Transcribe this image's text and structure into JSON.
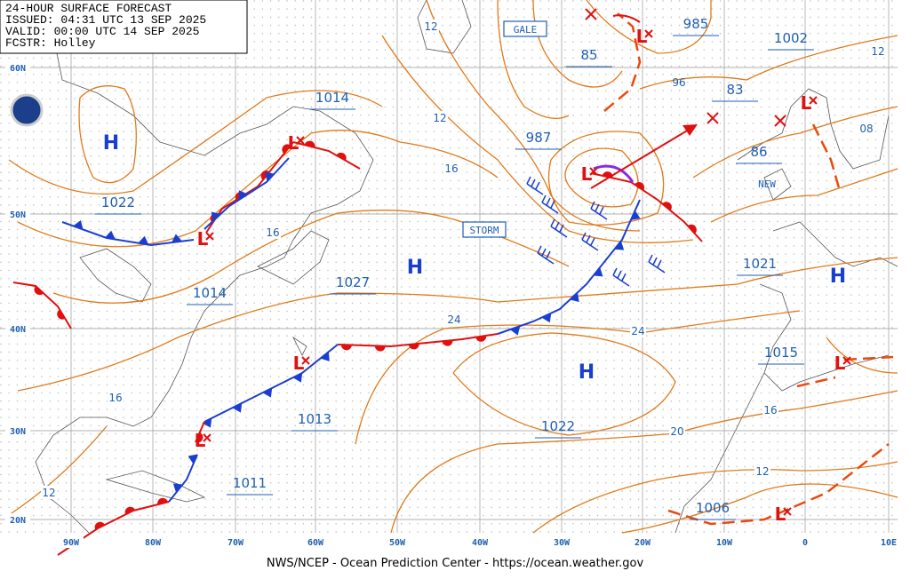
{
  "header": {
    "lines": [
      "24-HOUR SURFACE FORECAST",
      "ISSUED: 04:31 UTC 13 SEP 2025",
      "VALID:  00:00 UTC 14 SEP 2025",
      "FCSTR:  Holley"
    ]
  },
  "footer": "NWS/NCEP - Ocean Prediction Center - https://ocean.weather.gov",
  "latitude_labels": [
    "60N",
    "50N",
    "40N",
    "30N",
    "20N"
  ],
  "longitude_labels": [
    "90W",
    "80W",
    "70W",
    "60W",
    "50W",
    "40W",
    "30W",
    "20W",
    "10W",
    "0",
    "10E"
  ],
  "warnings": [
    "GALE",
    "STORM",
    "NEW"
  ],
  "pressure_labels": [
    "1014",
    "1022",
    "1014",
    "1027",
    "1013",
    "1011",
    "987",
    "985",
    "85",
    "83",
    "86",
    "96",
    "1002",
    "1021",
    "1015",
    "1022",
    "1006"
  ],
  "isobar_labels": [
    "12",
    "12",
    "16",
    "16",
    "24",
    "24",
    "20",
    "16",
    "12",
    "16",
    "12",
    "08",
    "12"
  ],
  "highs": [
    "H",
    "H",
    "H",
    "H"
  ],
  "lows": [
    "L",
    "L",
    "L",
    "L",
    "L",
    "L",
    "L",
    "L",
    "L"
  ]
}
